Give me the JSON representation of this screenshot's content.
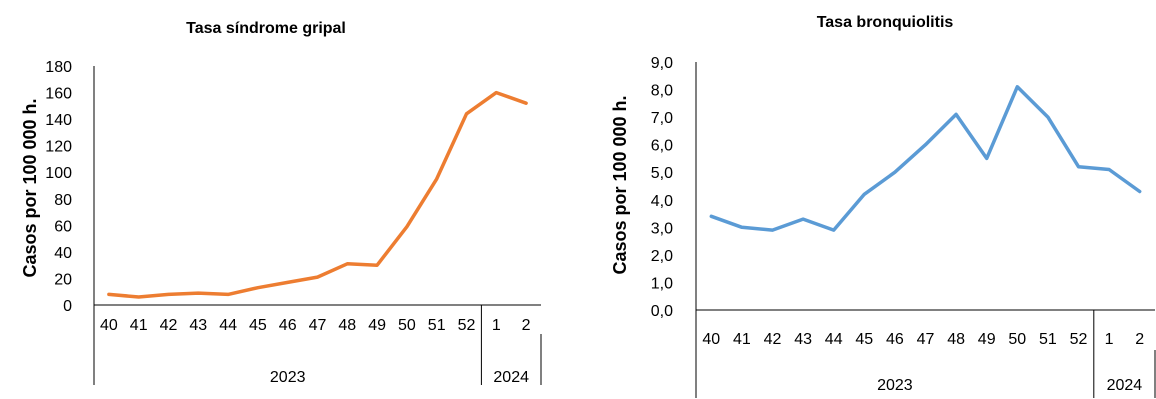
{
  "chart_data": [
    {
      "type": "line",
      "title": "Tasa síndrome gripal",
      "ylabel": "Casos por 100 000 h.",
      "xlabel": "",
      "categories": [
        "40",
        "41",
        "42",
        "43",
        "44",
        "45",
        "46",
        "47",
        "48",
        "49",
        "50",
        "51",
        "52",
        "1",
        "2"
      ],
      "groups": [
        {
          "label": "2023",
          "count": 13
        },
        {
          "label": "2024",
          "count": 2
        }
      ],
      "ylim": [
        0,
        180
      ],
      "yticks": [
        "0",
        "20",
        "40",
        "60",
        "80",
        "100",
        "120",
        "140",
        "160",
        "180"
      ],
      "yticks_values": [
        0,
        20,
        40,
        60,
        80,
        100,
        120,
        140,
        160,
        180
      ],
      "series": [
        {
          "values": [
            8,
            6,
            8,
            9,
            8,
            13,
            17,
            21,
            31,
            30,
            59,
            95,
            144,
            160,
            152
          ],
          "color": "#ED7D31"
        }
      ],
      "grid": false,
      "legend": "none"
    },
    {
      "type": "line",
      "title": "Tasa bronquiolitis",
      "ylabel": "Casos por 100 000 h.",
      "xlabel": "",
      "categories": [
        "40",
        "41",
        "42",
        "43",
        "44",
        "45",
        "46",
        "47",
        "48",
        "49",
        "50",
        "51",
        "52",
        "1",
        "2"
      ],
      "groups": [
        {
          "label": "2023",
          "count": 13
        },
        {
          "label": "2024",
          "count": 2
        }
      ],
      "ylim": [
        0,
        9
      ],
      "yticks": [
        "0,0",
        "1,0",
        "2,0",
        "3,0",
        "4,0",
        "5,0",
        "6,0",
        "7,0",
        "8,0",
        "9,0"
      ],
      "yticks_values": [
        0,
        1,
        2,
        3,
        4,
        5,
        6,
        7,
        8,
        9
      ],
      "series": [
        {
          "values": [
            3.4,
            3.0,
            2.9,
            3.3,
            2.9,
            4.2,
            5.0,
            6.0,
            7.1,
            5.5,
            8.1,
            7.0,
            5.2,
            5.1,
            4.3
          ],
          "color": "#5B9BD5"
        }
      ],
      "grid": false,
      "legend": "none"
    }
  ]
}
